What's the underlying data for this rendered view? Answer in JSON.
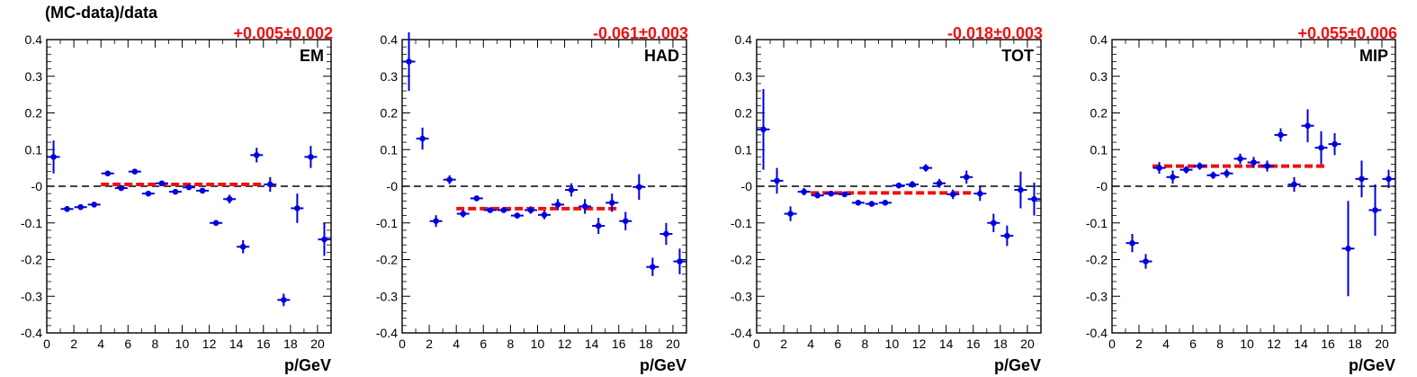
{
  "figure": {
    "ylabel": "(MC-data)/data",
    "xlabel": "p/GeV"
  },
  "colors": {
    "points": "#0000dd",
    "fit": "#ee1111",
    "axes": "#000000",
    "zero_line": "#000000"
  },
  "chart_data": [
    {
      "type": "scatter",
      "label": "EM",
      "fit_text": "+0.005±0.002",
      "fit": {
        "value": 0.005,
        "error": 0.002,
        "x_range": [
          4,
          16
        ]
      },
      "xlim": [
        0,
        21
      ],
      "ylim": [
        -0.4,
        0.4
      ],
      "xticks": [
        0,
        2,
        4,
        6,
        8,
        10,
        12,
        14,
        16,
        18,
        20
      ],
      "yticks": [
        -0.4,
        -0.3,
        -0.2,
        -0.1,
        0,
        0.1,
        0.2,
        0.3,
        0.4
      ],
      "ytick_labels": [
        "-0.4",
        "-0.3",
        "-0.2",
        "-0.1",
        "-0",
        "0.1",
        "0.2",
        "0.3",
        "0.4"
      ],
      "points": [
        {
          "x": 0.5,
          "y": 0.08,
          "err": 0.045
        },
        {
          "x": 1.5,
          "y": -0.062,
          "err": 0.008
        },
        {
          "x": 2.5,
          "y": -0.057,
          "err": 0.006
        },
        {
          "x": 3.5,
          "y": -0.05,
          "err": 0.005
        },
        {
          "x": 4.5,
          "y": 0.035,
          "err": 0.005
        },
        {
          "x": 5.5,
          "y": -0.005,
          "err": 0.005
        },
        {
          "x": 6.5,
          "y": 0.04,
          "err": 0.005
        },
        {
          "x": 7.5,
          "y": -0.02,
          "err": 0.006
        },
        {
          "x": 8.5,
          "y": 0.008,
          "err": 0.005
        },
        {
          "x": 9.5,
          "y": -0.015,
          "err": 0.006
        },
        {
          "x": 10.5,
          "y": -0.003,
          "err": 0.006
        },
        {
          "x": 11.5,
          "y": -0.012,
          "err": 0.007
        },
        {
          "x": 12.5,
          "y": -0.1,
          "err": 0.008
        },
        {
          "x": 13.5,
          "y": -0.035,
          "err": 0.012
        },
        {
          "x": 14.5,
          "y": -0.165,
          "err": 0.018
        },
        {
          "x": 15.5,
          "y": 0.085,
          "err": 0.02
        },
        {
          "x": 16.5,
          "y": 0.005,
          "err": 0.02
        },
        {
          "x": 17.5,
          "y": -0.31,
          "err": 0.017
        },
        {
          "x": 18.5,
          "y": -0.06,
          "err": 0.04
        },
        {
          "x": 19.5,
          "y": 0.08,
          "err": 0.03
        },
        {
          "x": 20.5,
          "y": -0.145,
          "err": 0.045
        }
      ]
    },
    {
      "type": "scatter",
      "label": "HAD",
      "fit_text": "-0.061±0.003",
      "fit": {
        "value": -0.061,
        "error": 0.003,
        "x_range": [
          4,
          16
        ]
      },
      "xlim": [
        0,
        21
      ],
      "ylim": [
        -0.4,
        0.4
      ],
      "xticks": [
        0,
        2,
        4,
        6,
        8,
        10,
        12,
        14,
        16,
        18,
        20
      ],
      "yticks": [
        -0.4,
        -0.3,
        -0.2,
        -0.1,
        0,
        0.1,
        0.2,
        0.3,
        0.4
      ],
      "ytick_labels": [
        "-0.4",
        "-0.3",
        "-0.2",
        "-0.1",
        "-0",
        "0.1",
        "0.2",
        "0.3",
        "0.4"
      ],
      "points": [
        {
          "x": 0.5,
          "y": 0.34,
          "err": 0.08
        },
        {
          "x": 1.5,
          "y": 0.13,
          "err": 0.03
        },
        {
          "x": 2.5,
          "y": -0.095,
          "err": 0.016
        },
        {
          "x": 3.5,
          "y": 0.018,
          "err": 0.012
        },
        {
          "x": 4.5,
          "y": -0.075,
          "err": 0.01
        },
        {
          "x": 5.5,
          "y": -0.033,
          "err": 0.006
        },
        {
          "x": 6.5,
          "y": -0.065,
          "err": 0.007
        },
        {
          "x": 7.5,
          "y": -0.065,
          "err": 0.007
        },
        {
          "x": 8.5,
          "y": -0.08,
          "err": 0.008
        },
        {
          "x": 9.5,
          "y": -0.065,
          "err": 0.01
        },
        {
          "x": 10.5,
          "y": -0.078,
          "err": 0.012
        },
        {
          "x": 11.5,
          "y": -0.05,
          "err": 0.015
        },
        {
          "x": 12.5,
          "y": -0.01,
          "err": 0.018
        },
        {
          "x": 13.5,
          "y": -0.055,
          "err": 0.02
        },
        {
          "x": 14.5,
          "y": -0.108,
          "err": 0.022
        },
        {
          "x": 15.5,
          "y": -0.045,
          "err": 0.025
        },
        {
          "x": 16.5,
          "y": -0.095,
          "err": 0.025
        },
        {
          "x": 17.5,
          "y": -0.002,
          "err": 0.035
        },
        {
          "x": 18.5,
          "y": -0.22,
          "err": 0.025
        },
        {
          "x": 19.5,
          "y": -0.13,
          "err": 0.03
        },
        {
          "x": 20.5,
          "y": -0.205,
          "err": 0.035
        }
      ]
    },
    {
      "type": "scatter",
      "label": "TOT",
      "fit_text": "-0.018±0.003",
      "fit": {
        "value": -0.018,
        "error": 0.003,
        "x_range": [
          4,
          16
        ]
      },
      "xlim": [
        0,
        21
      ],
      "ylim": [
        -0.4,
        0.4
      ],
      "xticks": [
        0,
        2,
        4,
        6,
        8,
        10,
        12,
        14,
        16,
        18,
        20
      ],
      "yticks": [
        -0.4,
        -0.3,
        -0.2,
        -0.1,
        0,
        0.1,
        0.2,
        0.3,
        0.4
      ],
      "ytick_labels": [
        "-0.4",
        "-0.3",
        "-0.2",
        "-0.1",
        "-0",
        "0.1",
        "0.2",
        "0.3",
        "0.4"
      ],
      "points": [
        {
          "x": 0.5,
          "y": 0.155,
          "err": 0.11
        },
        {
          "x": 1.5,
          "y": 0.015,
          "err": 0.035
        },
        {
          "x": 2.5,
          "y": -0.075,
          "err": 0.02
        },
        {
          "x": 3.5,
          "y": -0.015,
          "err": 0.01
        },
        {
          "x": 4.5,
          "y": -0.025,
          "err": 0.008
        },
        {
          "x": 5.5,
          "y": -0.02,
          "err": 0.006
        },
        {
          "x": 6.5,
          "y": -0.022,
          "err": 0.006
        },
        {
          "x": 7.5,
          "y": -0.045,
          "err": 0.006
        },
        {
          "x": 8.5,
          "y": -0.048,
          "err": 0.006
        },
        {
          "x": 9.5,
          "y": -0.045,
          "err": 0.007
        },
        {
          "x": 10.5,
          "y": 0.002,
          "err": 0.008
        },
        {
          "x": 11.5,
          "y": 0.005,
          "err": 0.009
        },
        {
          "x": 12.5,
          "y": 0.05,
          "err": 0.01
        },
        {
          "x": 13.5,
          "y": 0.008,
          "err": 0.012
        },
        {
          "x": 14.5,
          "y": -0.022,
          "err": 0.013
        },
        {
          "x": 15.5,
          "y": 0.025,
          "err": 0.018
        },
        {
          "x": 16.5,
          "y": -0.02,
          "err": 0.02
        },
        {
          "x": 17.5,
          "y": -0.1,
          "err": 0.025
        },
        {
          "x": 18.5,
          "y": -0.135,
          "err": 0.028
        },
        {
          "x": 19.5,
          "y": -0.01,
          "err": 0.05
        },
        {
          "x": 20.5,
          "y": -0.035,
          "err": 0.045
        }
      ]
    },
    {
      "type": "scatter",
      "label": "MIP",
      "fit_text": "+0.055±0.006",
      "fit": {
        "value": 0.055,
        "error": 0.006,
        "x_range": [
          3,
          16
        ]
      },
      "xlim": [
        0,
        21
      ],
      "ylim": [
        -0.4,
        0.4
      ],
      "xticks": [
        0,
        2,
        4,
        6,
        8,
        10,
        12,
        14,
        16,
        18,
        20
      ],
      "yticks": [
        -0.4,
        -0.3,
        -0.2,
        -0.1,
        0,
        0.1,
        0.2,
        0.3,
        0.4
      ],
      "ytick_labels": [
        "-0.4",
        "-0.3",
        "-0.2",
        "-0.1",
        "-0",
        "0.1",
        "0.2",
        "0.3",
        "0.4"
      ],
      "points": [
        {
          "x": 1.5,
          "y": -0.155,
          "err": 0.025
        },
        {
          "x": 2.5,
          "y": -0.205,
          "err": 0.02
        },
        {
          "x": 3.5,
          "y": 0.05,
          "err": 0.016
        },
        {
          "x": 4.5,
          "y": 0.025,
          "err": 0.018
        },
        {
          "x": 5.5,
          "y": 0.045,
          "err": 0.01
        },
        {
          "x": 6.5,
          "y": 0.055,
          "err": 0.01
        },
        {
          "x": 7.5,
          "y": 0.03,
          "err": 0.01
        },
        {
          "x": 8.5,
          "y": 0.035,
          "err": 0.012
        },
        {
          "x": 9.5,
          "y": 0.075,
          "err": 0.014
        },
        {
          "x": 10.5,
          "y": 0.065,
          "err": 0.015
        },
        {
          "x": 11.5,
          "y": 0.055,
          "err": 0.015
        },
        {
          "x": 12.5,
          "y": 0.14,
          "err": 0.018
        },
        {
          "x": 13.5,
          "y": 0.005,
          "err": 0.02
        },
        {
          "x": 14.5,
          "y": 0.165,
          "err": 0.045
        },
        {
          "x": 15.5,
          "y": 0.105,
          "err": 0.045
        },
        {
          "x": 16.5,
          "y": 0.115,
          "err": 0.03
        },
        {
          "x": 17.5,
          "y": -0.17,
          "err": 0.13
        },
        {
          "x": 18.5,
          "y": 0.02,
          "err": 0.05
        },
        {
          "x": 19.5,
          "y": -0.065,
          "err": 0.07
        },
        {
          "x": 20.5,
          "y": 0.02,
          "err": 0.025
        }
      ]
    }
  ]
}
